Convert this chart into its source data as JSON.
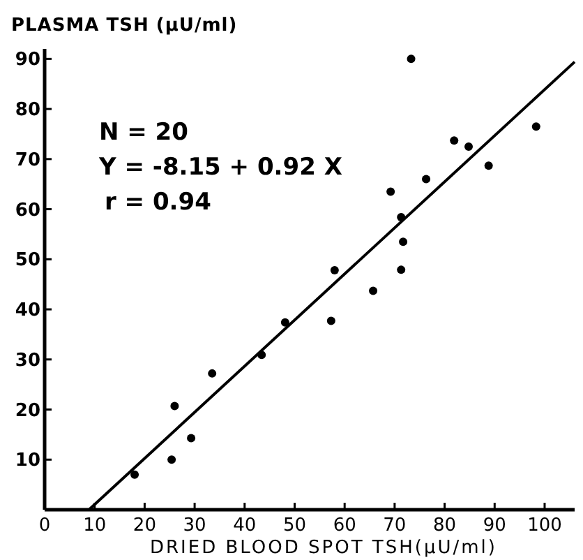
{
  "chart_data": {
    "type": "scatter",
    "xlabel": "DRIED BLOOD SPOT TSH(µU/ml)",
    "ylabel": "PLASMA TSH (µU/ml)",
    "annotations": [
      "N = 20",
      "Y = -8.15 + 0.92 X",
      "r = 0.94"
    ],
    "xlim": [
      0,
      106
    ],
    "ylim": [
      0,
      92
    ],
    "xticks": [
      0,
      10,
      20,
      30,
      40,
      50,
      60,
      70,
      80,
      90,
      100
    ],
    "yticks": [
      10,
      20,
      30,
      40,
      50,
      60,
      70,
      80,
      90
    ],
    "grid": false,
    "marker": "circle",
    "series": [
      {
        "color": "#000000",
        "x": [
          18,
          25.4,
          26,
          29.3,
          33.5,
          43.4,
          48.1,
          57.3,
          58,
          65.7,
          71.3,
          73.3,
          69.2,
          71.3,
          71.7,
          76.3,
          81.9,
          84.8,
          88.8,
          98.3
        ],
        "values": [
          7,
          10,
          20.7,
          14.3,
          27.2,
          30.9,
          37.4,
          37.7,
          47.8,
          43.7,
          47.9,
          90,
          63.5,
          58.4,
          53.5,
          66,
          73.7,
          72.5,
          68.7,
          76.5
        ]
      },
      {
        "type": "line",
        "color": "#000000",
        "marker": "none",
        "x": [
          8.86,
          106
        ],
        "values": [
          0,
          89.4
        ]
      }
    ]
  }
}
